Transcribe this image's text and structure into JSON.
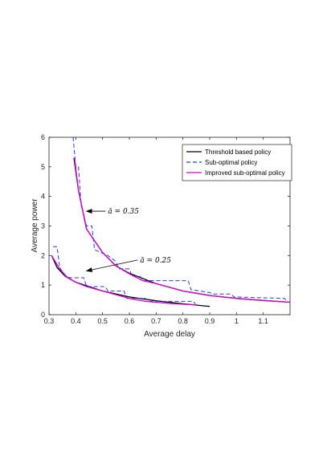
{
  "chart_data": {
    "type": "line",
    "xlabel": "Average delay",
    "ylabel": "Average power",
    "xlim": [
      0.3,
      1.2
    ],
    "ylim": [
      0,
      6
    ],
    "xticks": [
      "0.3",
      "0.4",
      "0.5",
      "0.6",
      "0.7",
      "0.8",
      "0.9",
      "1",
      "1.1"
    ],
    "yticks": [
      "0",
      "1",
      "2",
      "3",
      "4",
      "5",
      "6"
    ],
    "xtick_values": [
      0.3,
      0.4,
      0.5,
      0.6,
      0.7,
      0.8,
      0.9,
      1.0,
      1.1
    ],
    "ytick_values": [
      0,
      1,
      2,
      3,
      4,
      5,
      6
    ],
    "grid": false,
    "legend_position": "top-right",
    "series": [
      {
        "name": "Threshold based policy",
        "color": "#000000",
        "style": "solid",
        "groups": [
          [
            [
              0.31,
              2.0
            ],
            [
              0.33,
              1.6
            ],
            [
              0.36,
              1.3
            ],
            [
              0.4,
              1.1
            ],
            [
              0.45,
              0.95
            ],
            [
              0.5,
              0.8
            ],
            [
              0.6,
              0.6
            ],
            [
              0.7,
              0.47
            ],
            [
              0.8,
              0.37
            ],
            [
              0.9,
              0.28
            ]
          ],
          [
            [
              0.393,
              5.3
            ],
            [
              0.41,
              4.2
            ],
            [
              0.44,
              2.9
            ],
            [
              0.5,
              2.1
            ],
            [
              0.55,
              1.65
            ],
            [
              0.6,
              1.4
            ],
            [
              0.7,
              1.05
            ],
            [
              0.8,
              0.8
            ],
            [
              0.9,
              0.65
            ],
            [
              1.0,
              0.55
            ],
            [
              1.1,
              0.48
            ],
            [
              1.2,
              0.42
            ]
          ]
        ]
      },
      {
        "name": "Sub-optimal policy",
        "color": "#1f3fdc",
        "style": "dashed",
        "groups": [
          [
            [
              0.315,
              2.3
            ],
            [
              0.33,
              2.3
            ],
            [
              0.34,
              1.6
            ],
            [
              0.36,
              1.3
            ],
            [
              0.38,
              1.25
            ],
            [
              0.43,
              1.25
            ],
            [
              0.44,
              0.95
            ],
            [
              0.51,
              0.95
            ],
            [
              0.52,
              0.8
            ],
            [
              0.58,
              0.8
            ],
            [
              0.59,
              0.55
            ],
            [
              0.66,
              0.55
            ],
            [
              0.67,
              0.45
            ],
            [
              0.84,
              0.45
            ],
            [
              0.85,
              0.3
            ]
          ],
          [
            [
              0.39,
              6.0
            ],
            [
              0.4,
              5.0
            ],
            [
              0.41,
              5.0
            ],
            [
              0.42,
              3.7
            ],
            [
              0.44,
              3.0
            ],
            [
              0.46,
              3.0
            ],
            [
              0.47,
              2.2
            ],
            [
              0.52,
              2.0
            ],
            [
              0.55,
              1.8
            ],
            [
              0.56,
              1.55
            ],
            [
              0.6,
              1.55
            ],
            [
              0.61,
              1.3
            ],
            [
              0.64,
              1.3
            ],
            [
              0.65,
              1.15
            ],
            [
              0.82,
              1.15
            ],
            [
              0.83,
              0.85
            ],
            [
              0.9,
              0.75
            ],
            [
              0.91,
              0.7
            ],
            [
              0.98,
              0.7
            ],
            [
              0.99,
              0.6
            ],
            [
              1.18,
              0.55
            ],
            [
              1.19,
              0.42
            ]
          ]
        ]
      },
      {
        "name": "Improved sub-optimal policy",
        "color": "#d400d4",
        "style": "solid",
        "groups": [
          [
            [
              0.31,
              2.0
            ],
            [
              0.34,
              1.55
            ],
            [
              0.37,
              1.25
            ],
            [
              0.4,
              1.1
            ],
            [
              0.44,
              0.95
            ],
            [
              0.5,
              0.8
            ],
            [
              0.6,
              0.55
            ],
            [
              0.66,
              0.45
            ],
            [
              0.75,
              0.38
            ],
            [
              0.85,
              0.33
            ]
          ],
          [
            [
              0.395,
              5.3
            ],
            [
              0.41,
              4.2
            ],
            [
              0.44,
              2.9
            ],
            [
              0.5,
              2.1
            ],
            [
              0.55,
              1.65
            ],
            [
              0.6,
              1.38
            ],
            [
              0.65,
              1.15
            ],
            [
              0.7,
              1.05
            ],
            [
              0.8,
              0.8
            ],
            [
              0.9,
              0.65
            ],
            [
              1.0,
              0.55
            ],
            [
              1.1,
              0.48
            ],
            [
              1.2,
              0.42
            ]
          ]
        ]
      }
    ],
    "annotations": [
      {
        "text": "ā = 0.35",
        "label_at": [
          0.52,
          3.5
        ],
        "arrow_to": [
          0.44,
          3.5
        ]
      },
      {
        "text": "ā = 0.25",
        "label_at": [
          0.64,
          1.85
        ],
        "arrow_to": [
          0.44,
          1.48
        ]
      }
    ]
  }
}
